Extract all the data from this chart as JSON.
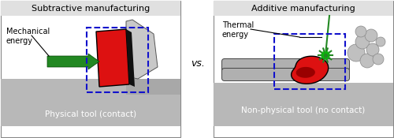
{
  "left_title": "Subtractive manufacturing",
  "right_title": "Additive manufacturing",
  "vs_text": "vs.",
  "left_label": "Physical tool (contact)",
  "right_label": "Non-physical tool (no contact)",
  "left_energy_label": "Mechanical\nenergy",
  "right_energy_label": "Thermal\nenergy",
  "gray_light": "#b8b8b8",
  "gray_med": "#a0a0a0",
  "gray_dark": "#888888",
  "gray_tool": "#c8c8c8",
  "red_color": "#dd1111",
  "green_color": "#228822",
  "blue_dashed": "#1111cc",
  "title_fontsize": 8.0,
  "label_fontsize": 7.5,
  "energy_fontsize": 7.0,
  "panel_border": "#aaaaaa"
}
